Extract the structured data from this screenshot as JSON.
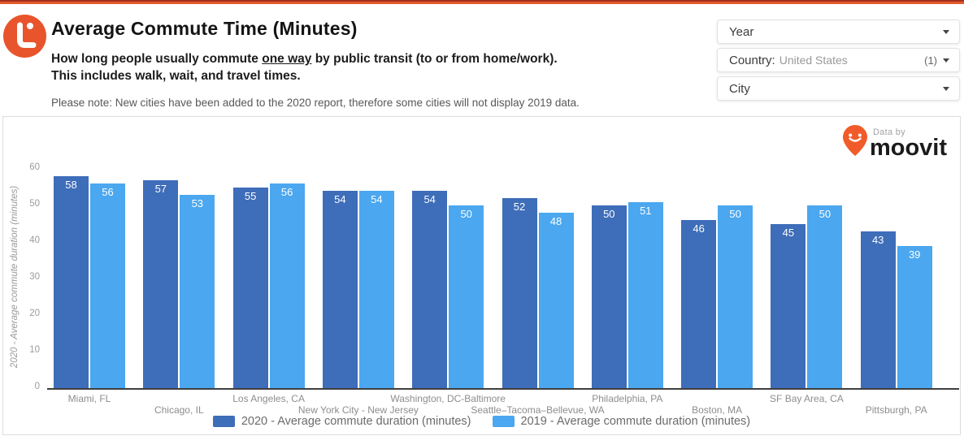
{
  "accent_color": "#e4582c",
  "header": {
    "title": "Average Commute Time (Minutes)",
    "subtitle_pre": "How long people usually commute ",
    "subtitle_underlined": "one way",
    "subtitle_post": " by public transit (to or from home/work).",
    "subtitle_line2": "This includes walk, wait, and travel times.",
    "note": "Please note: New cities have been added to the 2020 report, therefore some cities will not display 2019 data."
  },
  "filters": {
    "year": {
      "label": "Year"
    },
    "country": {
      "label": "Country:",
      "value": "United States",
      "count": "(1)"
    },
    "city": {
      "label": "City"
    }
  },
  "branding": {
    "data_by": "Data by",
    "wordmark": "moovit",
    "pin_color": "#f15b2a"
  },
  "chart_data": {
    "type": "bar",
    "title": "Average Commute Time (Minutes)",
    "categories": [
      "Miami, FL",
      "Chicago, IL",
      "Los Angeles, CA",
      "New York City - New Jersey",
      "Washington, DC-Baltimore",
      "Seattle–Tacoma–Bellevue, WA",
      "Philadelphia, PA",
      "Boston, MA",
      "SF Bay Area, CA",
      "Pittsburgh, PA"
    ],
    "series": [
      {
        "name": "2020 - Average commute duration (minutes)",
        "color": "#3e6db9",
        "values": [
          58,
          57,
          55,
          54,
          54,
          52,
          50,
          46,
          45,
          43
        ]
      },
      {
        "name": "2019 - Average commute duration (minutes)",
        "color": "#4ba7ef",
        "values": [
          56,
          53,
          56,
          54,
          50,
          48,
          51,
          50,
          50,
          39
        ]
      }
    ],
    "xlabel": "",
    "ylabel": "2020 - Average commute duration (minutes)",
    "yticks": [
      0,
      10,
      20,
      30,
      40,
      50,
      60
    ],
    "ylim": [
      0,
      60
    ],
    "grid": false,
    "legend_position": "bottom",
    "value_labels": true
  }
}
